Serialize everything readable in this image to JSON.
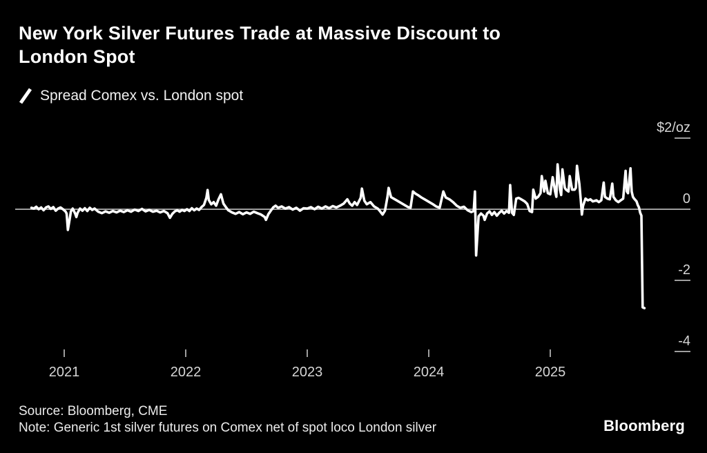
{
  "header": {
    "title_lines": [
      "New York Silver Futures Trade at Massive Discount to",
      "London Spot"
    ]
  },
  "legend": {
    "label": "Spread Comex vs. London spot"
  },
  "axis": {
    "y_ticks": [
      {
        "value": 2,
        "label": "$2/oz",
        "dash": true
      },
      {
        "value": 0,
        "label": "0",
        "dash": false
      },
      {
        "value": -2,
        "label": "-2",
        "dash": true
      },
      {
        "value": -4,
        "label": "-4",
        "dash": true
      }
    ],
    "x_ticks": [
      {
        "value": 2021,
        "label": "2021"
      },
      {
        "value": 2022,
        "label": "2022"
      },
      {
        "value": 2023,
        "label": "2023"
      },
      {
        "value": 2024,
        "label": "2024"
      },
      {
        "value": 2025,
        "label": "2025"
      }
    ]
  },
  "footer": {
    "source": "Source: Bloomberg, CME",
    "note": "Note: Generic 1st silver futures on Comex net of spot loco London silver",
    "brand": "Bloomberg"
  },
  "colors": {
    "bg": "#000000",
    "title": "#ffffff",
    "legendtext": "#f2f2f2",
    "axistext": "#d6d6d6",
    "footertext": "#ececec",
    "series_line": "#ffffff",
    "zero_line": "#9e9e9e",
    "tick": "#9e9e9e"
  },
  "chart_data": {
    "type": "line",
    "title": "New York Silver Futures Trade at Massive Discount to London Spot",
    "subtitle": "Spread Comex vs. London spot",
    "xlabel": "",
    "ylabel": "$/oz",
    "unit_label": "$2/oz",
    "ylim": [
      -4.8,
      2.4
    ],
    "x_range": [
      2020.72,
      2025.82
    ],
    "grid": false,
    "zero_line": true,
    "legend_position": "top-left",
    "y_tick_values": [
      2,
      0,
      -2,
      -4
    ],
    "x_tick_values": [
      2021,
      2022,
      2023,
      2024,
      2025
    ],
    "series": [
      {
        "name": "Spread Comex vs. London spot",
        "points": [
          [
            2020.73,
            0.04
          ],
          [
            2020.75,
            0.02
          ],
          [
            2020.77,
            0.07
          ],
          [
            2020.79,
            0
          ],
          [
            2020.81,
            0.05
          ],
          [
            2020.83,
            -0.03
          ],
          [
            2020.85,
            0.05
          ],
          [
            2020.87,
            0.08
          ],
          [
            2020.89,
            0.01
          ],
          [
            2020.91,
            0.06
          ],
          [
            2020.93,
            -0.04
          ],
          [
            2020.95,
            0.02
          ],
          [
            2020.97,
            0.05
          ],
          [
            2020.99,
            0
          ],
          [
            2021.01,
            -0.06
          ],
          [
            2021.02,
            -0.12
          ],
          [
            2021.03,
            -0.58
          ],
          [
            2021.045,
            -0.28
          ],
          [
            2021.055,
            -0.06
          ],
          [
            2021.07,
            0.02
          ],
          [
            2021.08,
            -0.05
          ],
          [
            2021.09,
            -0.12
          ],
          [
            2021.1,
            -0.22
          ],
          [
            2021.11,
            -0.1
          ],
          [
            2021.13,
            0.02
          ],
          [
            2021.15,
            -0.04
          ],
          [
            2021.17,
            0.03
          ],
          [
            2021.19,
            -0.05
          ],
          [
            2021.21,
            0.04
          ],
          [
            2021.23,
            -0.02
          ],
          [
            2021.25,
            0.02
          ],
          [
            2021.28,
            -0.07
          ],
          [
            2021.31,
            -0.11
          ],
          [
            2021.34,
            -0.06
          ],
          [
            2021.37,
            -0.1
          ],
          [
            2021.4,
            -0.05
          ],
          [
            2021.43,
            -0.09
          ],
          [
            2021.46,
            -0.04
          ],
          [
            2021.49,
            -0.08
          ],
          [
            2021.52,
            -0.03
          ],
          [
            2021.55,
            -0.07
          ],
          [
            2021.58,
            -0.01
          ],
          [
            2021.61,
            -0.05
          ],
          [
            2021.64,
            0.01
          ],
          [
            2021.67,
            -0.06
          ],
          [
            2021.7,
            -0.02
          ],
          [
            2021.73,
            -0.07
          ],
          [
            2021.76,
            -0.04
          ],
          [
            2021.79,
            -0.09
          ],
          [
            2021.82,
            -0.05
          ],
          [
            2021.85,
            -0.11
          ],
          [
            2021.87,
            -0.24
          ],
          [
            2021.89,
            -0.13
          ],
          [
            2021.91,
            -0.06
          ],
          [
            2021.93,
            -0.03
          ],
          [
            2021.95,
            -0.07
          ],
          [
            2021.97,
            -0.02
          ],
          [
            2021.99,
            -0.05
          ],
          [
            2022.01,
            0
          ],
          [
            2022.03,
            -0.05
          ],
          [
            2022.05,
            0.03
          ],
          [
            2022.07,
            -0.03
          ],
          [
            2022.09,
            0.02
          ],
          [
            2022.11,
            -0.02
          ],
          [
            2022.13,
            0.06
          ],
          [
            2022.15,
            0.12
          ],
          [
            2022.17,
            0.32
          ],
          [
            2022.18,
            0.54
          ],
          [
            2022.19,
            0.26
          ],
          [
            2022.21,
            0.14
          ],
          [
            2022.23,
            0.2
          ],
          [
            2022.25,
            0.1
          ],
          [
            2022.27,
            0.28
          ],
          [
            2022.29,
            0.42
          ],
          [
            2022.31,
            0.16
          ],
          [
            2022.33,
            0.06
          ],
          [
            2022.35,
            -0.03
          ],
          [
            2022.38,
            -0.09
          ],
          [
            2022.41,
            -0.13
          ],
          [
            2022.44,
            -0.08
          ],
          [
            2022.47,
            -0.14
          ],
          [
            2022.5,
            -0.09
          ],
          [
            2022.53,
            -0.13
          ],
          [
            2022.56,
            -0.07
          ],
          [
            2022.59,
            -0.11
          ],
          [
            2022.62,
            -0.15
          ],
          [
            2022.65,
            -0.22
          ],
          [
            2022.66,
            -0.3
          ],
          [
            2022.68,
            -0.14
          ],
          [
            2022.7,
            -0.04
          ],
          [
            2022.72,
            0.05
          ],
          [
            2022.74,
            0.1
          ],
          [
            2022.76,
            0.04
          ],
          [
            2022.79,
            0.08
          ],
          [
            2022.82,
            0.02
          ],
          [
            2022.85,
            0.06
          ],
          [
            2022.88,
            -0.01
          ],
          [
            2022.91,
            0.04
          ],
          [
            2022.94,
            -0.04
          ],
          [
            2022.97,
            0.03
          ],
          [
            2023,
            0.02
          ],
          [
            2023.03,
            0.06
          ],
          [
            2023.06,
            0
          ],
          [
            2023.09,
            0.07
          ],
          [
            2023.12,
            0.02
          ],
          [
            2023.15,
            0.08
          ],
          [
            2023.18,
            0.03
          ],
          [
            2023.21,
            0.09
          ],
          [
            2023.24,
            0.05
          ],
          [
            2023.27,
            0.1
          ],
          [
            2023.3,
            0.16
          ],
          [
            2023.33,
            0.28
          ],
          [
            2023.35,
            0.16
          ],
          [
            2023.37,
            0.1
          ],
          [
            2023.39,
            0.2
          ],
          [
            2023.41,
            0.12
          ],
          [
            2023.44,
            0.32
          ],
          [
            2023.45,
            0.58
          ],
          [
            2023.47,
            0.24
          ],
          [
            2023.49,
            0.14
          ],
          [
            2023.52,
            0.2
          ],
          [
            2023.55,
            0.08
          ],
          [
            2023.58,
            0.02
          ],
          [
            2023.6,
            -0.06
          ],
          [
            2023.62,
            -0.15
          ],
          [
            2023.64,
            -0.04
          ],
          [
            2023.66,
            0.35
          ],
          [
            2023.67,
            0.6
          ],
          [
            2023.69,
            0.34
          ],
          [
            2023.71,
            0.3
          ],
          [
            2023.74,
            0.24
          ],
          [
            2023.77,
            0.18
          ],
          [
            2023.8,
            0.12
          ],
          [
            2023.83,
            0.06
          ],
          [
            2023.85,
            0.04
          ],
          [
            2023.87,
            0.5
          ],
          [
            2023.89,
            0.44
          ],
          [
            2023.91,
            0.4
          ],
          [
            2023.94,
            0.33
          ],
          [
            2023.97,
            0.27
          ],
          [
            2024,
            0.21
          ],
          [
            2024.03,
            0.15
          ],
          [
            2024.06,
            0.08
          ],
          [
            2024.09,
            0.04
          ],
          [
            2024.12,
            0.5
          ],
          [
            2024.14,
            0.33
          ],
          [
            2024.17,
            0.28
          ],
          [
            2024.2,
            0.2
          ],
          [
            2024.23,
            0.1
          ],
          [
            2024.26,
            0.04
          ],
          [
            2024.29,
            0.07
          ],
          [
            2024.32,
            -0.03
          ],
          [
            2024.35,
            -0.08
          ],
          [
            2024.37,
            -0.05
          ],
          [
            2024.38,
            0.5
          ],
          [
            2024.39,
            -1.3
          ],
          [
            2024.41,
            -0.2
          ],
          [
            2024.43,
            -0.12
          ],
          [
            2024.45,
            -0.18
          ],
          [
            2024.46,
            -0.3
          ],
          [
            2024.48,
            -0.12
          ],
          [
            2024.5,
            -0.06
          ],
          [
            2024.52,
            -0.16
          ],
          [
            2024.54,
            -0.08
          ],
          [
            2024.56,
            -0.18
          ],
          [
            2024.58,
            -0.1
          ],
          [
            2024.6,
            -0.04
          ],
          [
            2024.62,
            -0.12
          ],
          [
            2024.64,
            -0.05
          ],
          [
            2024.66,
            -0.1
          ],
          [
            2024.67,
            0.68
          ],
          [
            2024.685,
            -0.1
          ],
          [
            2024.7,
            -0.16
          ],
          [
            2024.72,
            0.3
          ],
          [
            2024.74,
            0.32
          ],
          [
            2024.76,
            0.28
          ],
          [
            2024.79,
            0.22
          ],
          [
            2024.81,
            0.15
          ],
          [
            2024.83,
            -0.05
          ],
          [
            2024.85,
            -0.08
          ],
          [
            2024.86,
            0.55
          ],
          [
            2024.88,
            0.3
          ],
          [
            2024.9,
            0.35
          ],
          [
            2024.92,
            0.45
          ],
          [
            2024.93,
            0.93
          ],
          [
            2024.95,
            0.5
          ],
          [
            2024.96,
            0.8
          ],
          [
            2024.98,
            0.45
          ],
          [
            2025,
            0.42
          ],
          [
            2025.02,
            0.9
          ],
          [
            2025.04,
            0.5
          ],
          [
            2025.05,
            0.35
          ],
          [
            2025.06,
            1.26
          ],
          [
            2025.08,
            0.55
          ],
          [
            2025.09,
            0.4
          ],
          [
            2025.1,
            1.12
          ],
          [
            2025.12,
            0.6
          ],
          [
            2025.13,
            0.55
          ],
          [
            2025.15,
            0.5
          ],
          [
            2025.16,
            0.93
          ],
          [
            2025.18,
            0.55
          ],
          [
            2025.2,
            0.55
          ],
          [
            2025.21,
            0.6
          ],
          [
            2025.22,
            1.22
          ],
          [
            2025.24,
            0.7
          ],
          [
            2025.25,
            0.3
          ],
          [
            2025.26,
            -0.15
          ],
          [
            2025.27,
            0.1
          ],
          [
            2025.29,
            0.3
          ],
          [
            2025.31,
            0.25
          ],
          [
            2025.33,
            0.28
          ],
          [
            2025.35,
            0.22
          ],
          [
            2025.38,
            0.25
          ],
          [
            2025.4,
            0.2
          ],
          [
            2025.42,
            0.25
          ],
          [
            2025.44,
            0.75
          ],
          [
            2025.45,
            0.35
          ],
          [
            2025.47,
            0.3
          ],
          [
            2025.49,
            0.28
          ],
          [
            2025.51,
            0.72
          ],
          [
            2025.52,
            0.35
          ],
          [
            2025.54,
            0.25
          ],
          [
            2025.56,
            0.2
          ],
          [
            2025.58,
            0.25
          ],
          [
            2025.6,
            0.3
          ],
          [
            2025.62,
            1.08
          ],
          [
            2025.63,
            0.5
          ],
          [
            2025.64,
            0.45
          ],
          [
            2025.66,
            1.15
          ],
          [
            2025.67,
            0.5
          ],
          [
            2025.68,
            0.35
          ],
          [
            2025.69,
            0.3
          ],
          [
            2025.71,
            0.22
          ],
          [
            2025.72,
            0.12
          ],
          [
            2025.73,
            0.05
          ],
          [
            2025.74,
            -0.1
          ],
          [
            2025.75,
            -0.18
          ],
          [
            2025.76,
            -2.76
          ],
          [
            2025.775,
            -2.78
          ]
        ]
      }
    ]
  }
}
